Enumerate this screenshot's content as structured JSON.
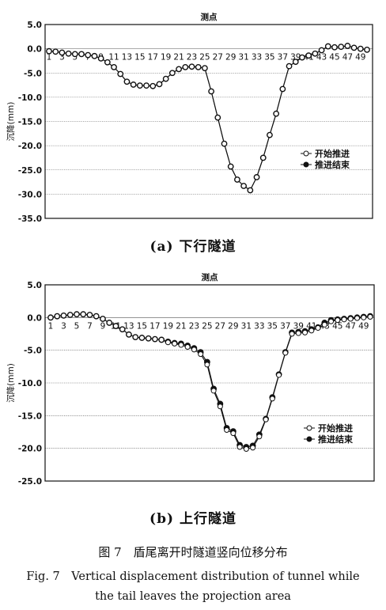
{
  "caption": {
    "cn": "图 7　盾尾离开时隧道竖向位移分布",
    "en1": "Fig. 7　Vertical displacement distribution of tunnel while",
    "en2": "the tail leaves the projection area"
  },
  "chart_data": [
    {
      "type": "line",
      "subcaption": "(a) 下行隧道",
      "xlabel": "测点",
      "ylabel": "沉降(mm)",
      "ylim": [
        -35,
        5
      ],
      "yticks": [
        5,
        0,
        -5,
        -10,
        -15,
        -20,
        -25,
        -30,
        -35
      ],
      "ytick_labels": [
        "5.0",
        "0.0",
        "-5.0",
        "-10.0",
        "-15.0",
        "-20.0",
        "-25.0",
        "-30.0",
        "-35.0"
      ],
      "xticks": [
        1,
        3,
        5,
        7,
        9,
        11,
        13,
        15,
        17,
        19,
        21,
        23,
        25,
        27,
        29,
        31,
        33,
        35,
        37,
        39,
        41,
        43,
        45,
        47,
        49
      ],
      "grid": true,
      "legend_position": "right",
      "x": [
        1,
        2,
        3,
        4,
        5,
        6,
        7,
        8,
        9,
        10,
        11,
        12,
        13,
        14,
        15,
        16,
        17,
        18,
        19,
        20,
        21,
        22,
        23,
        24,
        25,
        26,
        27,
        28,
        29,
        30,
        31,
        32,
        33,
        34,
        35,
        36,
        37,
        38,
        39,
        40,
        41,
        42,
        43,
        44,
        45,
        46,
        47,
        48,
        49,
        50
      ],
      "series": [
        {
          "name": "开始推进",
          "marker": "open-circle",
          "values": [
            -0.5,
            -0.6,
            -0.8,
            -1.0,
            -1.1,
            -1.1,
            -1.3,
            -1.5,
            -2.0,
            -2.8,
            -3.8,
            -5.2,
            -6.8,
            -7.4,
            -7.6,
            -7.6,
            -7.7,
            -7.3,
            -6.2,
            -5.0,
            -4.2,
            -3.8,
            -3.7,
            -3.8,
            -4.0,
            -8.8,
            -14.2,
            -19.6,
            -24.3,
            -27.0,
            -28.3,
            -29.2,
            -26.5,
            -22.5,
            -17.8,
            -13.4,
            -8.3,
            -3.6,
            -2.7,
            -1.8,
            -1.4,
            -1.0,
            -0.3,
            0.5,
            0.3,
            0.4,
            0.6,
            0.2,
            0.0,
            -0.2
          ]
        },
        {
          "name": "推进结束",
          "marker": "filled-circle",
          "values": [
            -0.5,
            -0.6,
            -0.8,
            -1.0,
            -1.1,
            -1.1,
            -1.3,
            -1.5,
            -2.0,
            -2.8,
            -3.8,
            -5.2,
            -6.8,
            -7.4,
            -7.6,
            -7.6,
            -7.7,
            -7.3,
            -6.2,
            -5.0,
            -4.2,
            -3.8,
            -3.7,
            -3.8,
            -4.0,
            -8.8,
            -14.2,
            -19.6,
            -24.3,
            -27.0,
            -28.3,
            -29.2,
            -26.5,
            -22.5,
            -17.8,
            -13.4,
            -8.3,
            -3.6,
            -2.7,
            -1.8,
            -1.4,
            -1.0,
            -0.3,
            0.5,
            0.3,
            0.4,
            0.6,
            0.2,
            0.0,
            -0.2
          ]
        }
      ]
    },
    {
      "type": "line",
      "subcaption": "(b) 上行隧道",
      "xlabel": "测点",
      "ylabel": "沉降(mm)",
      "ylim": [
        -25,
        5
      ],
      "yticks": [
        5,
        0,
        -5,
        -10,
        -15,
        -20,
        -25
      ],
      "ytick_labels": [
        "5.0",
        "0.0",
        "-5.0",
        "-10.0",
        "-15.0",
        "-20.0",
        "-25.0"
      ],
      "xticks": [
        1,
        3,
        5,
        7,
        9,
        11,
        13,
        15,
        17,
        19,
        21,
        23,
        25,
        27,
        29,
        31,
        33,
        35,
        37,
        39,
        41,
        43,
        45,
        47,
        49
      ],
      "grid": true,
      "legend_position": "right",
      "x": [
        1,
        2,
        3,
        4,
        5,
        6,
        7,
        8,
        9,
        10,
        11,
        12,
        13,
        14,
        15,
        16,
        17,
        18,
        19,
        20,
        21,
        22,
        23,
        24,
        25,
        26,
        27,
        28,
        29,
        30,
        31,
        32,
        33,
        34,
        35,
        36,
        37,
        38,
        39,
        40,
        41,
        42,
        43,
        44,
        45,
        46,
        47,
        48,
        49,
        50
      ],
      "series": [
        {
          "name": "开始推进",
          "marker": "open-circle",
          "values": [
            0.0,
            0.2,
            0.3,
            0.4,
            0.5,
            0.5,
            0.4,
            0.2,
            -0.2,
            -0.8,
            -1.3,
            -1.8,
            -2.6,
            -3.0,
            -3.1,
            -3.2,
            -3.3,
            -3.4,
            -3.8,
            -4.0,
            -4.2,
            -4.5,
            -4.9,
            -5.6,
            -7.2,
            -11.2,
            -13.6,
            -17.2,
            -17.7,
            -19.8,
            -20.1,
            -19.9,
            -18.2,
            -15.6,
            -12.4,
            -8.8,
            -5.4,
            -2.5,
            -2.4,
            -2.3,
            -2.0,
            -1.6,
            -1.1,
            -0.6,
            -0.4,
            -0.3,
            -0.2,
            -0.1,
            0.0,
            0.1
          ]
        },
        {
          "name": "推进结束",
          "marker": "filled-circle",
          "values": [
            0.0,
            0.2,
            0.3,
            0.4,
            0.5,
            0.5,
            0.4,
            0.2,
            -0.2,
            -0.8,
            -1.3,
            -1.8,
            -2.6,
            -3.0,
            -3.1,
            -3.2,
            -3.3,
            -3.4,
            -3.7,
            -3.9,
            -4.0,
            -4.3,
            -4.7,
            -5.3,
            -6.8,
            -10.9,
            -13.2,
            -16.9,
            -17.4,
            -19.5,
            -19.8,
            -19.6,
            -17.9,
            -15.5,
            -12.2,
            -8.7,
            -5.3,
            -2.3,
            -2.2,
            -2.1,
            -1.8,
            -1.5,
            -0.8,
            -0.4,
            -0.3,
            -0.2,
            -0.1,
            0.0,
            0.1,
            0.2
          ]
        }
      ]
    }
  ]
}
